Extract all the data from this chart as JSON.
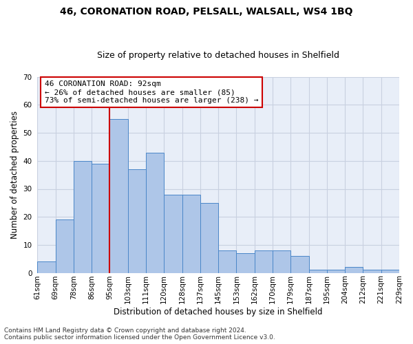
{
  "title_line1": "46, CORONATION ROAD, PELSALL, WALSALL, WS4 1BQ",
  "title_line2": "Size of property relative to detached houses in Shelfield",
  "xlabel": "Distribution of detached houses by size in Shelfield",
  "ylabel": "Number of detached properties",
  "bar_values": [
    4,
    19,
    40,
    39,
    55,
    37,
    43,
    28,
    28,
    25,
    8,
    7,
    8,
    8,
    6,
    1,
    1,
    2,
    1,
    1
  ],
  "bar_labels": [
    "61sqm",
    "69sqm",
    "78sqm",
    "86sqm",
    "95sqm",
    "103sqm",
    "111sqm",
    "120sqm",
    "128sqm",
    "137sqm",
    "145sqm",
    "153sqm",
    "162sqm",
    "170sqm",
    "179sqm",
    "187sqm",
    "195sqm",
    "204sqm",
    "212sqm",
    "221sqm",
    "229sqm"
  ],
  "bar_color": "#aec6e8",
  "bar_edge_color": "#4a86c8",
  "red_line_color": "#cc0000",
  "annotation_text_line1": "46 CORONATION ROAD: 92sqm",
  "annotation_text_line2": "← 26% of detached houses are smaller (85)",
  "annotation_text_line3": "73% of semi-detached houses are larger (238) →",
  "annotation_box_color": "#ffffff",
  "annotation_box_edge": "#cc0000",
  "ylim": [
    0,
    70
  ],
  "yticks": [
    0,
    10,
    20,
    30,
    40,
    50,
    60,
    70
  ],
  "grid_color": "#c8d0e0",
  "bg_color": "#e8eef8",
  "footer_line1": "Contains HM Land Registry data © Crown copyright and database right 2024.",
  "footer_line2": "Contains public sector information licensed under the Open Government Licence v3.0.",
  "title_fontsize": 10,
  "subtitle_fontsize": 9,
  "axis_label_fontsize": 8.5,
  "tick_fontsize": 7.5,
  "annotation_fontsize": 8,
  "footer_fontsize": 6.5
}
